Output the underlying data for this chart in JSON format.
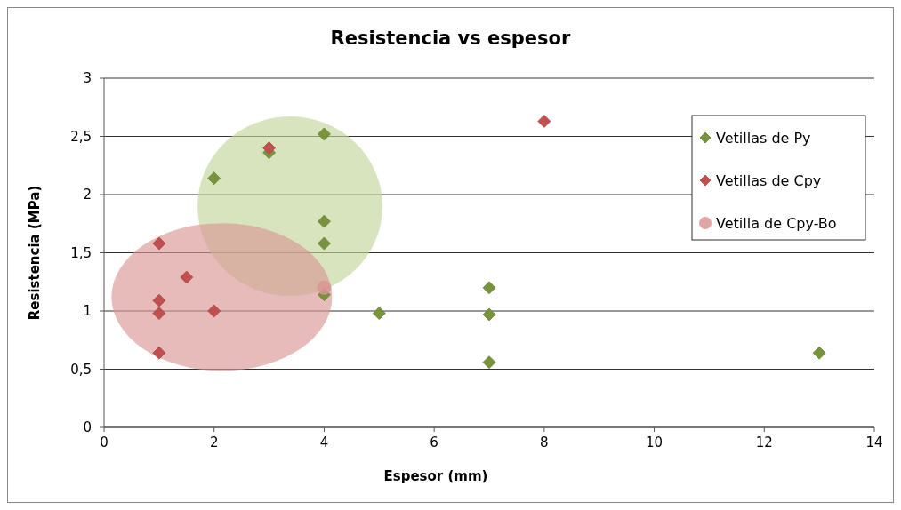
{
  "chart_data": {
    "type": "scatter",
    "title": "Resistencia vs espesor",
    "xlabel": "Espesor (mm)",
    "ylabel": "Resistencia (MPa)",
    "xlim": [
      0,
      14
    ],
    "xticks": [
      0,
      2,
      4,
      6,
      8,
      10,
      12,
      14
    ],
    "ylim": [
      0,
      3
    ],
    "yticks": [
      0,
      {
        "value": 0.5,
        "label": "0,5"
      },
      1,
      {
        "value": 1.5,
        "label": "1,5"
      },
      2,
      {
        "value": 2.5,
        "label": "2,5"
      },
      3
    ],
    "grid": "y",
    "legend": "top right",
    "series": [
      {
        "name": "Vetillas de Py",
        "color": "#77933c",
        "marker": "diamond",
        "x": [
          2,
          3,
          4,
          4,
          4,
          4,
          5,
          7,
          7,
          7,
          13
        ],
        "values": [
          2.14,
          2.36,
          2.52,
          1.77,
          1.58,
          1.14,
          0.98,
          1.2,
          0.97,
          0.56,
          0.64
        ]
      },
      {
        "name": "Vetillas de Cpy",
        "color": "#c0504d",
        "marker": "diamond",
        "x": [
          1,
          1,
          1,
          1,
          1.5,
          2,
          3,
          8
        ],
        "values": [
          1.58,
          1.09,
          0.98,
          0.64,
          1.29,
          1.0,
          2.4,
          2.63
        ]
      },
      {
        "name": "Vetilla de Cpy-Bo",
        "color": "#d99694",
        "marker": "circle",
        "x": [
          4
        ],
        "values": [
          1.2
        ]
      }
    ]
  }
}
